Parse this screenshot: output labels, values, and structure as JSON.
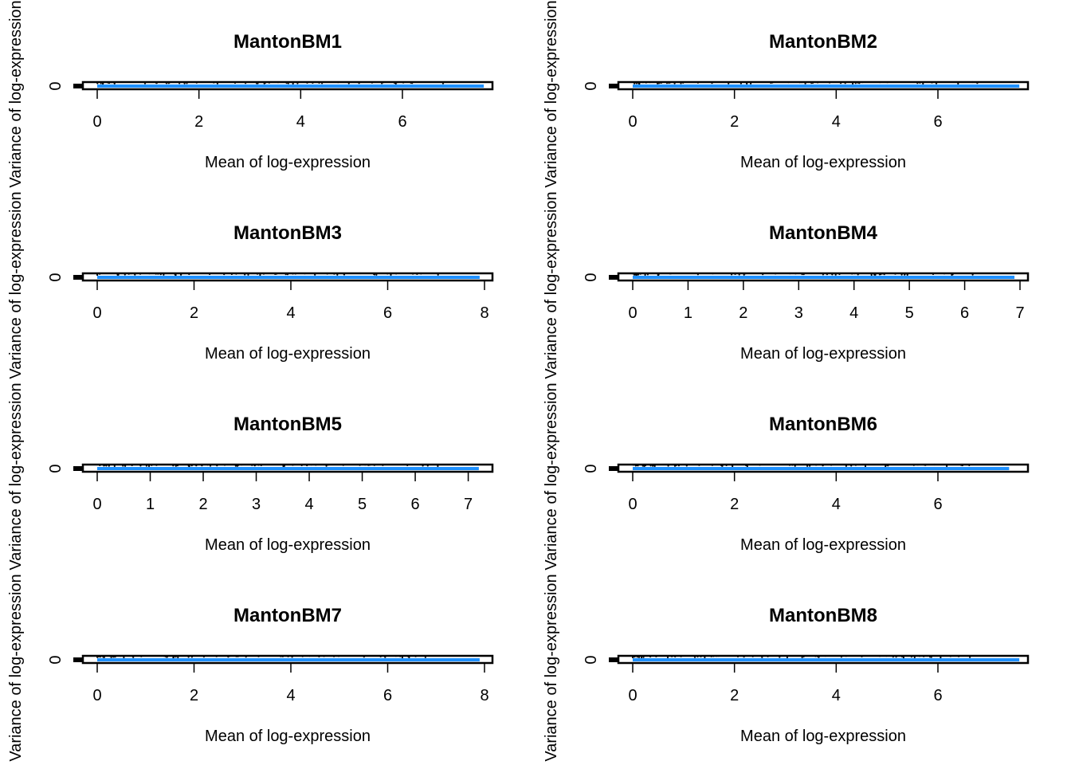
{
  "chart_data": [
    {
      "type": "scatter",
      "title": "MantonBM1",
      "xlabel": "Mean of log-expression",
      "ylabel": "Variance of log-expression",
      "xticks": [
        0,
        2,
        4,
        6
      ],
      "yticks": [
        0
      ],
      "xlim": [
        0,
        7.6
      ],
      "trend_color": "#1E90FF",
      "point_color": "#000000"
    },
    {
      "type": "scatter",
      "title": "MantonBM2",
      "xlabel": "Mean of log-expression",
      "ylabel": "Variance of log-expression",
      "xticks": [
        0,
        2,
        4,
        6
      ],
      "yticks": [
        0
      ],
      "xlim": [
        0,
        7.6
      ],
      "trend_color": "#1E90FF",
      "point_color": "#000000"
    },
    {
      "type": "scatter",
      "title": "MantonBM3",
      "xlabel": "Mean of log-expression",
      "ylabel": "Variance of log-expression",
      "xticks": [
        0,
        2,
        4,
        6,
        8
      ],
      "yticks": [
        0
      ],
      "xlim": [
        0,
        7.9
      ],
      "trend_color": "#1E90FF",
      "point_color": "#000000"
    },
    {
      "type": "scatter",
      "title": "MantonBM4",
      "xlabel": "Mean of log-expression",
      "ylabel": "Variance of log-expression",
      "xticks": [
        0,
        1,
        2,
        3,
        4,
        5,
        6,
        7
      ],
      "yticks": [
        0
      ],
      "xlim": [
        0,
        6.9
      ],
      "trend_color": "#1E90FF",
      "point_color": "#000000"
    },
    {
      "type": "scatter",
      "title": "MantonBM5",
      "xlabel": "Mean of log-expression",
      "ylabel": "Variance of log-expression",
      "xticks": [
        0,
        1,
        2,
        3,
        4,
        5,
        6,
        7
      ],
      "yticks": [
        0
      ],
      "xlim": [
        0,
        7.2
      ],
      "trend_color": "#1E90FF",
      "point_color": "#000000"
    },
    {
      "type": "scatter",
      "title": "MantonBM6",
      "xlabel": "Mean of log-expression",
      "ylabel": "Variance of log-expression",
      "xticks": [
        0,
        2,
        4,
        6
      ],
      "yticks": [
        0
      ],
      "xlim": [
        0,
        7.4
      ],
      "trend_color": "#1E90FF",
      "point_color": "#000000"
    },
    {
      "type": "scatter",
      "title": "MantonBM7",
      "xlabel": "Mean of log-expression",
      "ylabel": "Variance of log-expression",
      "xticks": [
        0,
        2,
        4,
        6,
        8
      ],
      "yticks": [
        0
      ],
      "xlim": [
        0,
        7.9
      ],
      "trend_color": "#1E90FF",
      "point_color": "#000000"
    },
    {
      "type": "scatter",
      "title": "MantonBM8",
      "xlabel": "Mean of log-expression",
      "ylabel": "Variance of log-expression",
      "xticks": [
        0,
        2,
        4,
        6
      ],
      "yticks": [
        0
      ],
      "xlim": [
        0,
        7.6
      ],
      "trend_color": "#1E90FF",
      "point_color": "#000000"
    }
  ]
}
